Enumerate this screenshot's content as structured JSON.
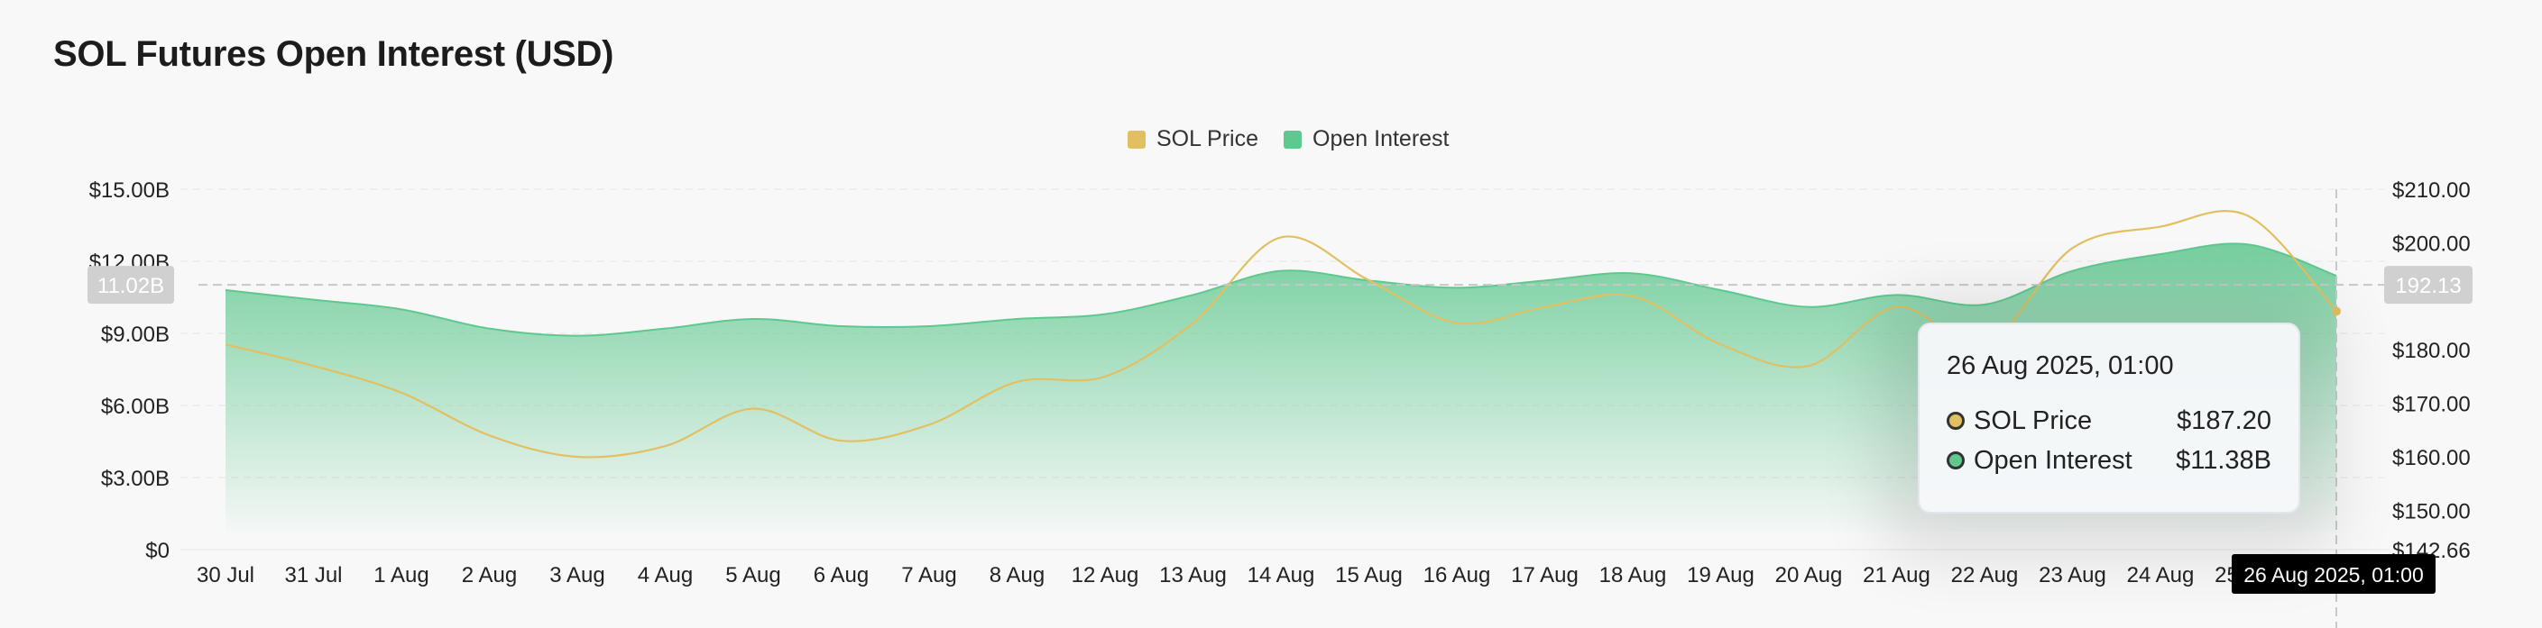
{
  "title": "SOL Futures Open Interest (USD)",
  "colors": {
    "sol_price": "#e2c062",
    "open_interest": "#5fc88f",
    "crosshair_label_bg": "#d0d0d0",
    "axis_pointer_bg": "#000000"
  },
  "legend": [
    {
      "name": "SOL Price",
      "color": "#e2c062"
    },
    {
      "name": "Open Interest",
      "color": "#5fc88f"
    }
  ],
  "tooltip": {
    "title": "26 Aug 2025, 01:00",
    "rows": [
      {
        "label": "SOL Price",
        "value": "$187.20",
        "color": "#e2c062"
      },
      {
        "label": "Open Interest",
        "value": "$11.38B",
        "color": "#5fc88f"
      }
    ]
  },
  "crosshair": {
    "left_label": "11.02B",
    "right_label": "192.13",
    "x_label": "26 Aug 2025, 01:00"
  },
  "chart_data": {
    "type": "area",
    "x_labels": [
      "30 Jul",
      "31 Jul",
      "1 Aug",
      "2 Aug",
      "3 Aug",
      "4 Aug",
      "5 Aug",
      "6 Aug",
      "7 Aug",
      "8 Aug",
      "12 Aug",
      "13 Aug",
      "14 Aug",
      "15 Aug",
      "16 Aug",
      "17 Aug",
      "18 Aug",
      "19 Aug",
      "20 Aug",
      "21 Aug",
      "22 Aug",
      "23 Aug",
      "24 Aug",
      "25 Aug"
    ],
    "left_axis": {
      "ticks": [
        "$0",
        "$3.00B",
        "$6.00B",
        "$9.00B",
        "$12.00B",
        "$15.00B"
      ],
      "min": 0,
      "max": 15
    },
    "right_axis": {
      "ticks": [
        "$142.66",
        "$150.00",
        "$160.00",
        "$170.00",
        "$180.00",
        "$190.00",
        "$200.00",
        "$210.00"
      ],
      "min": 142.66,
      "max": 210
    },
    "series": [
      {
        "name": "Open Interest",
        "unit": "B USD",
        "values": [
          10.8,
          10.4,
          10.0,
          9.2,
          8.9,
          9.2,
          9.6,
          9.3,
          9.3,
          9.6,
          9.8,
          10.6,
          11.6,
          11.2,
          10.9,
          11.2,
          11.5,
          10.8,
          10.1,
          10.6,
          10.2,
          11.6,
          12.3,
          12.7,
          11.4
        ]
      },
      {
        "name": "SOL Price",
        "unit": "USD",
        "values": [
          181,
          177,
          172,
          164,
          160,
          162,
          169,
          163,
          166,
          174,
          175,
          185,
          201,
          193,
          185,
          188,
          190,
          181,
          177,
          188,
          181,
          199,
          203,
          205,
          187.2
        ]
      }
    ],
    "grid": true
  }
}
